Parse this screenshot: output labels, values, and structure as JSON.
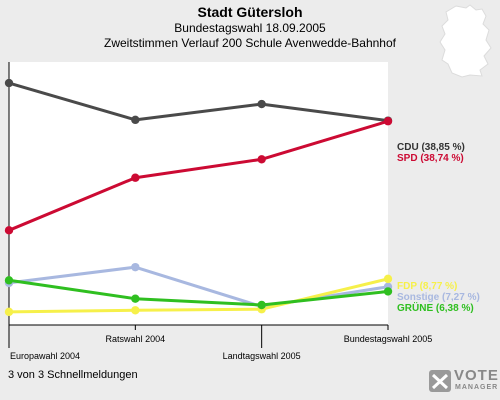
{
  "header": {
    "title": "Stadt Gütersloh",
    "subtitle": "Bundestagswahl 18.09.2005",
    "subtitle2": "Zweitstimmen Verlauf 200 Schule Avenwedde-Bahnhof"
  },
  "footer_note": "3 von 3 Schnellmeldungen",
  "logo": {
    "word": "VOTE",
    "sub": "MANAGER"
  },
  "icons": {
    "map": "germany-map-icon",
    "logo": "vote-manager-logo-icon"
  },
  "chart_data": {
    "type": "line",
    "title": "Stadt Gütersloh",
    "subtitle": "Bundestagswahl 18.09.2005 — Zweitstimmen Verlauf 200 Schule Avenwedde-Bahnhof",
    "categories": [
      "Europawahl 2004",
      "Ratswahl 2004",
      "Landtagswahl 2005",
      "Bundestagswahl 2005"
    ],
    "ylim": [
      0,
      50
    ],
    "grid": false,
    "legend": "right-end labels",
    "series": [
      {
        "name": "CDU",
        "label": "CDU (38,85 %)",
        "color": "#4a4a4a",
        "labelColor": "#333333",
        "values": [
          46.0,
          39.0,
          42.0,
          38.85
        ]
      },
      {
        "name": "SPD",
        "label": "SPD (38,74 %)",
        "color": "#cc0a33",
        "labelColor": "#cc0a33",
        "values": [
          18.0,
          28.0,
          31.5,
          38.74
        ]
      },
      {
        "name": "Sonstige",
        "label": "Sonstige (7,27 %)",
        "color": "#a8b8e0",
        "labelColor": "#a8b8e0",
        "values": [
          8.0,
          11.0,
          3.5,
          7.27
        ]
      },
      {
        "name": "FDP",
        "label": "FDP (8,77 %)",
        "color": "#f6f04a",
        "labelColor": "#f6f04a",
        "values": [
          2.5,
          2.8,
          3.0,
          8.77
        ]
      },
      {
        "name": "GRÜNE",
        "label": "GRÜNE (6,38 %)",
        "color": "#2fbf20",
        "labelColor": "#2fbf20",
        "values": [
          8.5,
          5.0,
          3.8,
          6.38
        ]
      }
    ]
  }
}
